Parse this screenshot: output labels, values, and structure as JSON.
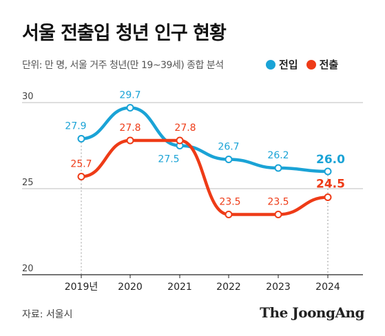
{
  "title": "서울 전출입 청년 인구 현황",
  "subtitle": "단위: 만 명, 서울 거주 청년(만 19~39세) 종합 분석",
  "source": "자료: 서울시",
  "brand": "The JoongAng",
  "colors": {
    "inflow": "#1aa3d6",
    "outflow": "#ee3b17"
  },
  "chart_data": {
    "type": "line",
    "categories": [
      "2019년",
      "2020",
      "2021",
      "2022",
      "2023",
      "2024"
    ],
    "series": [
      {
        "name": "전입",
        "values": [
          27.9,
          29.7,
          27.5,
          26.7,
          26.2,
          26.0
        ],
        "labels": [
          "27.9",
          "29.7",
          "27.5",
          "26.7",
          "26.2",
          "26.0"
        ]
      },
      {
        "name": "전출",
        "values": [
          25.7,
          27.8,
          27.8,
          23.5,
          23.5,
          24.5
        ],
        "labels": [
          "25.7",
          "27.8",
          "27.8",
          "23.5",
          "23.5",
          "24.5"
        ]
      }
    ],
    "ylim": [
      20,
      30
    ],
    "yticks": [
      "20",
      "25",
      "30"
    ],
    "grid": true,
    "legend": "top-right"
  }
}
